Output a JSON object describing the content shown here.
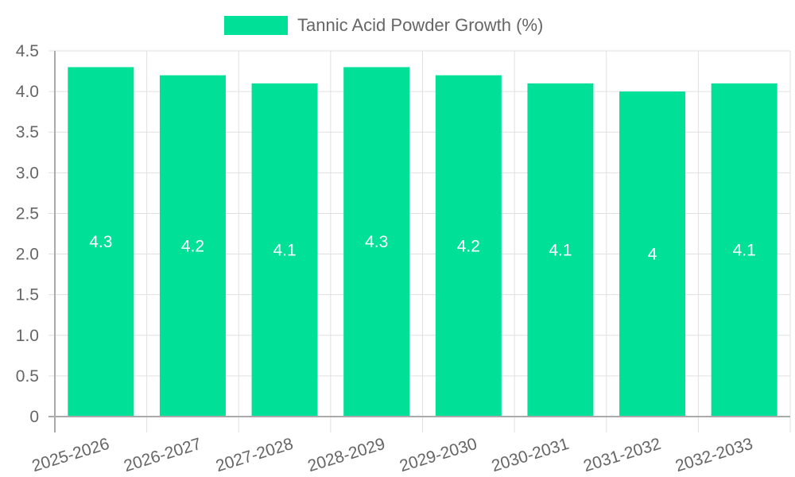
{
  "legend": {
    "label": "Tannic Acid Powder Growth (%)",
    "color": "#00e096"
  },
  "chart_data": {
    "type": "bar",
    "title": "",
    "xlabel": "",
    "ylabel": "",
    "categories": [
      "2025-2026",
      "2026-2027",
      "2027-2028",
      "2028-2029",
      "2029-2030",
      "2030-2031",
      "2031-2032",
      "2032-2033"
    ],
    "series": [
      {
        "name": "Tannic Acid Powder Growth (%)",
        "values": [
          4.3,
          4.2,
          4.1,
          4.3,
          4.2,
          4.1,
          4.0,
          4.1
        ],
        "color": "#00e096"
      }
    ],
    "data_labels": [
      "4.3",
      "4.2",
      "4.1",
      "4.3",
      "4.2",
      "4.1",
      "4",
      "4.1"
    ],
    "ylim": [
      0,
      4.5
    ],
    "yticks": [
      "0",
      "0.5",
      "1.0",
      "1.5",
      "2.0",
      "2.5",
      "3.0",
      "3.5",
      "4.0",
      "4.5"
    ],
    "grid": true,
    "legend_position": "top"
  }
}
